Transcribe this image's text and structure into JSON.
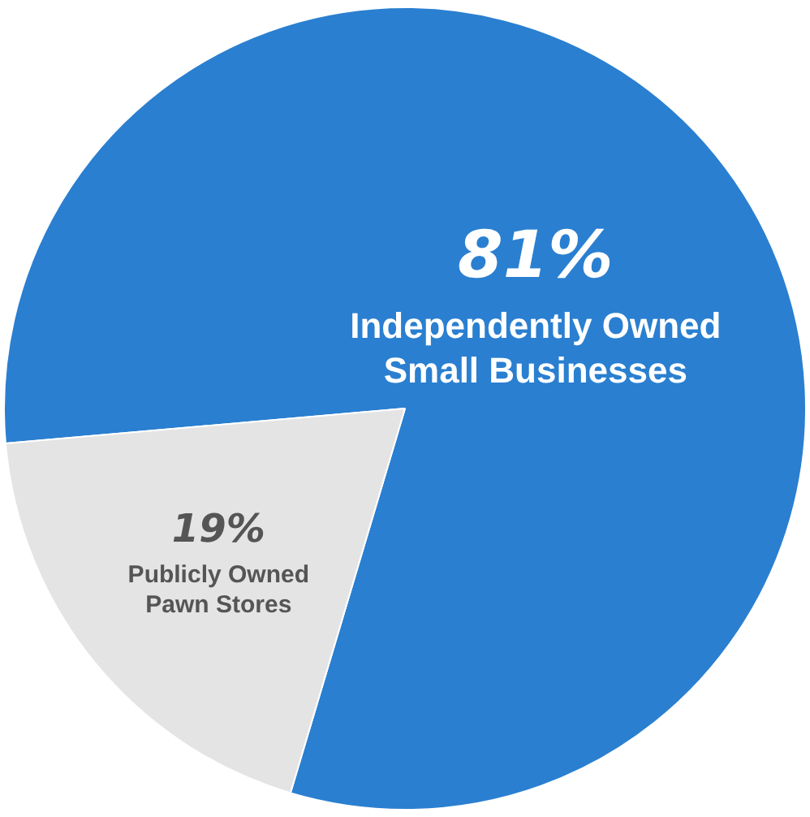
{
  "chart_data": {
    "type": "pie",
    "categories": [
      "Independently Owned Small Businesses",
      "Publicly Owned Pawn Stores"
    ],
    "values": [
      81,
      19
    ],
    "colors": [
      "#2a7fd0",
      "#e4e4e4"
    ],
    "value_labels": [
      "81%",
      "19%"
    ],
    "legend": false
  }
}
